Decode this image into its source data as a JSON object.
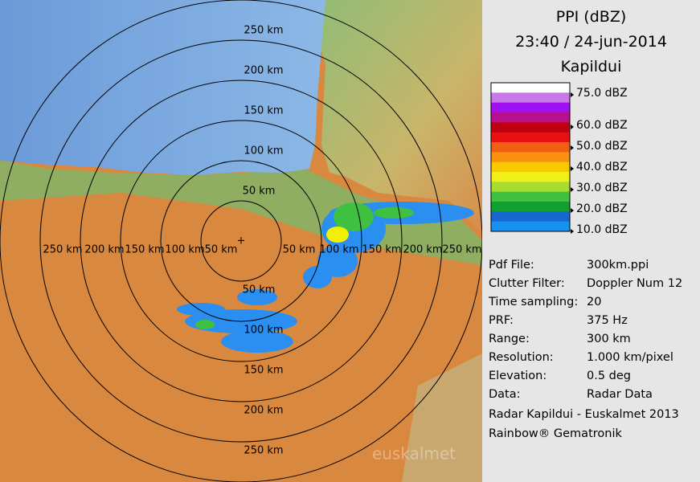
{
  "panel": {
    "title_lines": [
      "PPI (dBZ)",
      "23:40 / 24-jun-2014",
      "Kapildui"
    ],
    "legend": [
      "75.0 dBZ",
      "60.0 dBZ",
      "50.0 dBZ",
      "40.0 dBZ",
      "30.0 dBZ",
      "20.0 dBZ",
      "10.0 dBZ"
    ],
    "info": [
      [
        "Pdf File:",
        "300km.ppi"
      ],
      [
        "Clutter Filter:",
        "Doppler Num 12"
      ],
      [
        "Time sampling:",
        "20"
      ],
      [
        "PRF:",
        "375 Hz"
      ],
      [
        "Range:",
        "300 km"
      ],
      [
        "Resolution:",
        "1.000 km/pixel"
      ],
      [
        "Elevation:",
        "0.5 deg"
      ],
      [
        "Data:",
        "Radar Data"
      ]
    ],
    "credits": [
      "Radar Kapildui - Euskalmet 2013",
      "Rainbow® Gematronik"
    ]
  },
  "map": {
    "range_labels_north": [
      "250 km",
      "200 km",
      "150 km",
      "100 km",
      "50 km"
    ],
    "range_labels_south": [
      "50 km",
      "100 km",
      "150 km",
      "200 km",
      "250 km"
    ],
    "range_labels_west": [
      "250 km",
      "200 km",
      "150 km",
      "100 km",
      "50 km"
    ],
    "range_labels_east": [
      "50 km",
      "100 km",
      "150 km",
      "200 km",
      "250 km"
    ],
    "watermark": "euskalmet"
  }
}
